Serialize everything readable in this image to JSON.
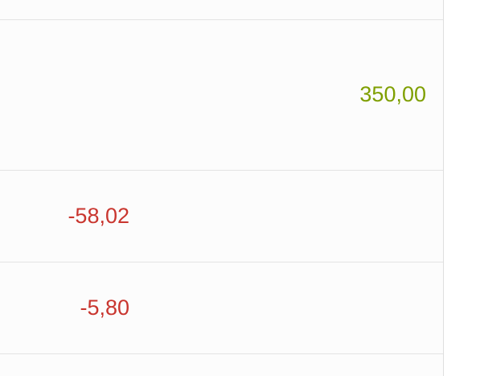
{
  "table": {
    "rows": [
      {
        "credit": "350,00",
        "debit": ""
      },
      {
        "credit": "",
        "debit": "-58,02"
      },
      {
        "credit": "",
        "debit": "-5,80"
      }
    ]
  },
  "colors": {
    "credit": "#7f9f00",
    "debit": "#c9362f",
    "border": "#e3e3e3",
    "panel_background": "#fcfcfc"
  }
}
